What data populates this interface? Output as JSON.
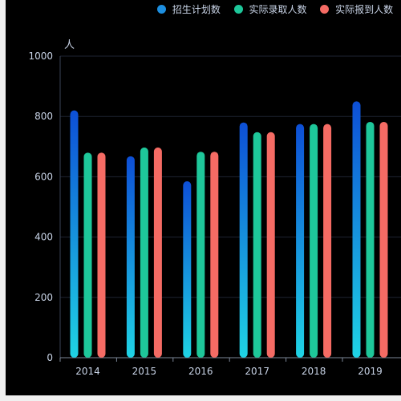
{
  "chart_data": {
    "type": "bar",
    "title": "",
    "xlabel": "",
    "ylabel": "人",
    "categories": [
      "2014",
      "2015",
      "2016",
      "2017",
      "2018",
      "2019"
    ],
    "series": [
      {
        "name": "招生计划数",
        "color": "#1d8fe0",
        "values": [
          820,
          668,
          585,
          780,
          775,
          850
        ]
      },
      {
        "name": "实际录取人数",
        "color": "#1ec79a",
        "values": [
          680,
          697,
          683,
          748,
          775,
          782
        ]
      },
      {
        "name": "实际报到人数",
        "color": "#f56b64",
        "values": [
          680,
          697,
          683,
          748,
          775,
          782
        ]
      }
    ],
    "ylim": [
      0,
      1000
    ],
    "yticks": [
      0,
      200,
      400,
      600,
      800,
      1000
    ],
    "grid": true,
    "legend_position": "top"
  }
}
